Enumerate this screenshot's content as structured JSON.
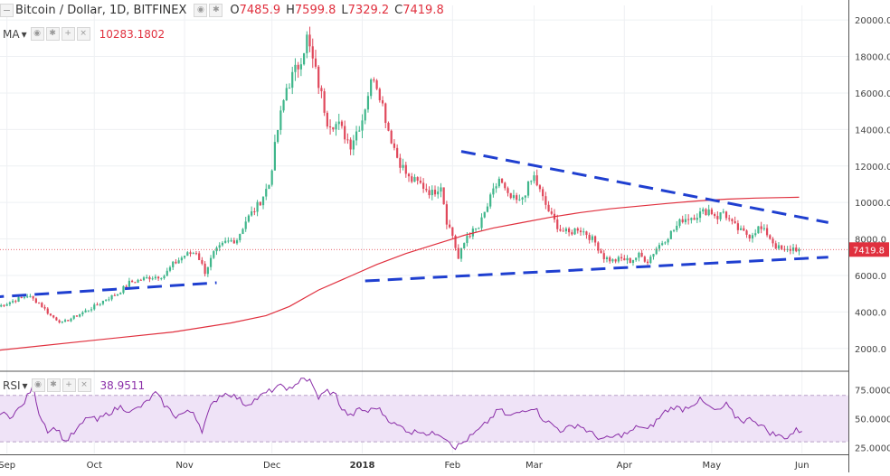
{
  "header": {
    "symbol_title": "Bitcoin / Dollar, 1D, BITFINEX",
    "ohlc": [
      {
        "k": "O",
        "v": "7485.9"
      },
      {
        "k": "H",
        "v": "7599.8"
      },
      {
        "k": "L",
        "v": "7329.2"
      },
      {
        "k": "C",
        "v": "7419.8"
      }
    ],
    "ma_label": "MA",
    "ma_value": "10283.1802",
    "rsi_label": "RSI",
    "rsi_value": "38.9511",
    "collapse_icon": "minus-square-icon",
    "dropdown_icon": "caret-down-icon",
    "toolbar_icons": [
      "eye-icon",
      "gear-icon",
      "plus-icon",
      "close-icon"
    ]
  },
  "colors": {
    "up": "#3fb68b",
    "down": "#e0485b",
    "ma": "#e0303e",
    "trend": "#1f3fd0",
    "rsi_line": "#8a2ea8",
    "rsi_band": "#efe3f7",
    "last_price_bg": "#e0303e"
  },
  "chart_data": {
    "type": "candlestick",
    "title": "Bitcoin / Dollar, 1D, BITFINEX",
    "price_axis": {
      "ticks": [
        "20000.0",
        "18000.0",
        "16000.0",
        "14000.0",
        "12000.0",
        "10000.0",
        "8000.0",
        "6000.0",
        "4000.0",
        "2000.0"
      ],
      "ylim": [
        800,
        20800
      ],
      "last_price": "7419.8"
    },
    "time_axis": {
      "labels": [
        {
          "text": "Sep",
          "day": 3
        },
        {
          "text": "Oct",
          "day": 33
        },
        {
          "text": "Nov",
          "day": 64
        },
        {
          "text": "Dec",
          "day": 94
        },
        {
          "text": "2018",
          "day": 125
        },
        {
          "text": "Feb",
          "day": 156
        },
        {
          "text": "Mar",
          "day": 184
        },
        {
          "text": "Apr",
          "day": 215
        },
        {
          "text": "May",
          "day": 245
        },
        {
          "text": "Jun",
          "day": 276
        }
      ],
      "start": "2017-08-31",
      "end": "2018-06-01"
    },
    "price_anchors": [
      [
        0,
        4300
      ],
      [
        5,
        4600
      ],
      [
        10,
        4900
      ],
      [
        14,
        4500
      ],
      [
        18,
        3800
      ],
      [
        22,
        3400
      ],
      [
        27,
        3800
      ],
      [
        33,
        4300
      ],
      [
        37,
        4700
      ],
      [
        41,
        5000
      ],
      [
        45,
        5600
      ],
      [
        52,
        5900
      ],
      [
        57,
        6000
      ],
      [
        60,
        6600
      ],
      [
        64,
        7100
      ],
      [
        68,
        7300
      ],
      [
        71,
        6200
      ],
      [
        74,
        7200
      ],
      [
        78,
        7800
      ],
      [
        82,
        8000
      ],
      [
        85,
        9000
      ],
      [
        89,
        9800
      ],
      [
        93,
        11000
      ],
      [
        96,
        14000
      ],
      [
        99,
        16300
      ],
      [
        103,
        17500
      ],
      [
        106,
        19000
      ],
      [
        110,
        16500
      ],
      [
        113,
        14500
      ],
      [
        117,
        14200
      ],
      [
        121,
        13200
      ],
      [
        125,
        14600
      ],
      [
        127,
        16000
      ],
      [
        129,
        17000
      ],
      [
        131,
        16000
      ],
      [
        134,
        14000
      ],
      [
        137,
        12500
      ],
      [
        141,
        11300
      ],
      [
        145,
        11000
      ],
      [
        149,
        10500
      ],
      [
        152,
        11000
      ],
      [
        154,
        9000
      ],
      [
        156,
        8200
      ],
      [
        158,
        6900
      ],
      [
        161,
        8200
      ],
      [
        165,
        8600
      ],
      [
        169,
        10200
      ],
      [
        172,
        11300
      ],
      [
        175,
        10300
      ],
      [
        179,
        10000
      ],
      [
        182,
        10900
      ],
      [
        184,
        11400
      ],
      [
        187,
        10200
      ],
      [
        190,
        9200
      ],
      [
        193,
        8500
      ],
      [
        196,
        8300
      ],
      [
        199,
        8600
      ],
      [
        202,
        8300
      ],
      [
        205,
        7800
      ],
      [
        208,
        7000
      ],
      [
        211,
        6800
      ],
      [
        214,
        6900
      ],
      [
        217,
        6800
      ],
      [
        220,
        7100
      ],
      [
        223,
        6800
      ],
      [
        226,
        7500
      ],
      [
        229,
        8000
      ],
      [
        232,
        8500
      ],
      [
        235,
        9100
      ],
      [
        238,
        9200
      ],
      [
        241,
        9400
      ],
      [
        244,
        9600
      ],
      [
        247,
        9200
      ],
      [
        249,
        9500
      ],
      [
        252,
        8800
      ],
      [
        255,
        8400
      ],
      [
        258,
        8200
      ],
      [
        261,
        8600
      ],
      [
        264,
        8300
      ],
      [
        267,
        7600
      ],
      [
        270,
        7300
      ],
      [
        273,
        7500
      ],
      [
        275,
        7420
      ]
    ],
    "ma": {
      "name": "MA",
      "points": [
        [
          0,
          1900
        ],
        [
          30,
          2400
        ],
        [
          60,
          2900
        ],
        [
          80,
          3400
        ],
        [
          92,
          3800
        ],
        [
          100,
          4300
        ],
        [
          110,
          5200
        ],
        [
          120,
          5900
        ],
        [
          130,
          6600
        ],
        [
          140,
          7200
        ],
        [
          150,
          7700
        ],
        [
          160,
          8200
        ],
        [
          170,
          8600
        ],
        [
          180,
          8900
        ],
        [
          190,
          9200
        ],
        [
          200,
          9450
        ],
        [
          210,
          9650
        ],
        [
          220,
          9800
        ],
        [
          230,
          9950
        ],
        [
          240,
          10080
        ],
        [
          250,
          10180
        ],
        [
          260,
          10240
        ],
        [
          270,
          10270
        ],
        [
          275,
          10283
        ]
      ]
    },
    "trendlines": [
      {
        "name": "upper",
        "from": [
          159,
          12800
        ],
        "to": [
          285,
          8900
        ]
      },
      {
        "name": "lower-left",
        "from": [
          -3,
          4800
        ],
        "to": [
          75,
          5600
        ]
      },
      {
        "name": "lower-right",
        "from": [
          126,
          5700
        ],
        "to": [
          285,
          7000
        ]
      }
    ],
    "rsi": {
      "name": "RSI",
      "ticks": [
        "75.0000",
        "50.0000",
        "25.0000"
      ],
      "ylim": [
        20,
        90
      ],
      "band": [
        30,
        70
      ],
      "anchors": [
        [
          0,
          55
        ],
        [
          4,
          52
        ],
        [
          8,
          60
        ],
        [
          12,
          78
        ],
        [
          14,
          55
        ],
        [
          17,
          40
        ],
        [
          20,
          42
        ],
        [
          23,
          30
        ],
        [
          27,
          40
        ],
        [
          31,
          52
        ],
        [
          34,
          48
        ],
        [
          38,
          55
        ],
        [
          42,
          60
        ],
        [
          46,
          56
        ],
        [
          50,
          62
        ],
        [
          54,
          72
        ],
        [
          57,
          62
        ],
        [
          61,
          52
        ],
        [
          64,
          55
        ],
        [
          67,
          56
        ],
        [
          70,
          40
        ],
        [
          73,
          60
        ],
        [
          76,
          70
        ],
        [
          79,
          72
        ],
        [
          82,
          68
        ],
        [
          85,
          62
        ],
        [
          88,
          66
        ],
        [
          92,
          72
        ],
        [
          95,
          76
        ],
        [
          98,
          78
        ],
        [
          101,
          74
        ],
        [
          104,
          86
        ],
        [
          107,
          82
        ],
        [
          110,
          68
        ],
        [
          113,
          74
        ],
        [
          116,
          70
        ],
        [
          118,
          58
        ],
        [
          121,
          52
        ],
        [
          124,
          58
        ],
        [
          127,
          56
        ],
        [
          130,
          60
        ],
        [
          133,
          52
        ],
        [
          136,
          45
        ],
        [
          139,
          42
        ],
        [
          142,
          38
        ],
        [
          145,
          40
        ],
        [
          148,
          36
        ],
        [
          151,
          38
        ],
        [
          154,
          33
        ],
        [
          157,
          25
        ],
        [
          160,
          30
        ],
        [
          163,
          36
        ],
        [
          166,
          42
        ],
        [
          169,
          50
        ],
        [
          172,
          58
        ],
        [
          175,
          52
        ],
        [
          178,
          54
        ],
        [
          181,
          58
        ],
        [
          184,
          60
        ],
        [
          187,
          50
        ],
        [
          190,
          45
        ],
        [
          193,
          40
        ],
        [
          196,
          42
        ],
        [
          199,
          45
        ],
        [
          202,
          40
        ],
        [
          205,
          35
        ],
        [
          208,
          32
        ],
        [
          211,
          34
        ],
        [
          214,
          36
        ],
        [
          217,
          38
        ],
        [
          220,
          44
        ],
        [
          223,
          40
        ],
        [
          226,
          48
        ],
        [
          229,
          56
        ],
        [
          232,
          60
        ],
        [
          235,
          58
        ],
        [
          238,
          62
        ],
        [
          241,
          66
        ],
        [
          244,
          60
        ],
        [
          247,
          56
        ],
        [
          250,
          62
        ],
        [
          253,
          52
        ],
        [
          256,
          48
        ],
        [
          259,
          50
        ],
        [
          262,
          44
        ],
        [
          265,
          38
        ],
        [
          268,
          35
        ],
        [
          271,
          34
        ],
        [
          274,
          40
        ],
        [
          276,
          39
        ]
      ]
    }
  }
}
